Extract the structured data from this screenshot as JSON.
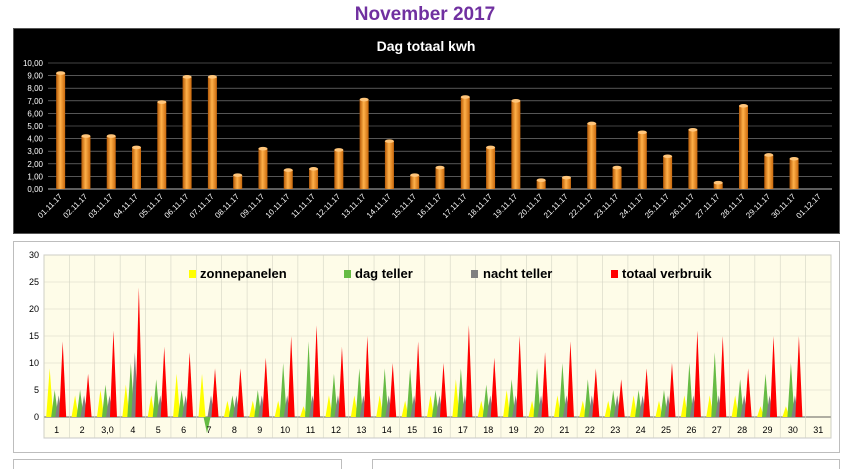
{
  "page": {
    "title": "November 2017"
  },
  "chart_data": [
    {
      "type": "bar",
      "title": "Dag totaal kwh",
      "xlabel": "",
      "ylabel": "",
      "ylim": [
        0,
        10
      ],
      "ytick_labels": [
        "0,00",
        "1,00",
        "2,00",
        "3,00",
        "4,00",
        "5,00",
        "6,00",
        "7,00",
        "8,00",
        "9,00",
        "10,00"
      ],
      "categories": [
        "01.11.17",
        "02.11.17",
        "03.11.17",
        "04.11.17",
        "05.11.17",
        "06.11.17",
        "07.11.17",
        "08.11.17",
        "09.11.17",
        "10.11.17",
        "11.11.17",
        "12.11.17",
        "13.11.17",
        "14.11.17",
        "15.11.17",
        "16.11.17",
        "17.11.17",
        "18.11.17",
        "19.11.17",
        "20.11.17",
        "21.11.17",
        "22.11.17",
        "23.11.17",
        "24.11.17",
        "25.11.17",
        "26.11.17",
        "27.11.17",
        "28.11.17",
        "29.11.17",
        "30.11.17",
        "01.12.17"
      ],
      "values": [
        9.2,
        4.2,
        4.2,
        3.3,
        6.9,
        8.9,
        8.9,
        1.1,
        3.2,
        1.5,
        1.6,
        3.1,
        7.1,
        3.8,
        1.1,
        1.7,
        7.3,
        3.3,
        7.0,
        0.7,
        0.9,
        5.2,
        1.7,
        4.5,
        2.6,
        4.7,
        0.5,
        6.6,
        2.7,
        2.4,
        null
      ],
      "bar_color": "#f7941d",
      "background": "#000000",
      "grid": true
    },
    {
      "type": "area",
      "title": "",
      "ylim": [
        0,
        30
      ],
      "ymin_display": -5,
      "yticks": [
        "0",
        "5",
        "10",
        "15",
        "20",
        "25",
        "30"
      ],
      "day_labels": [
        "1",
        "2",
        "3,0",
        "4",
        "5",
        "6",
        "7",
        "8",
        "9",
        "10",
        "11",
        "12",
        "13",
        "14",
        "15",
        "16",
        "17",
        "18",
        "19",
        "20",
        "21",
        "22",
        "23",
        "24",
        "25",
        "26",
        "27",
        "28",
        "29",
        "30",
        "31"
      ],
      "legend": [
        "zonnepanelen",
        "dag teller",
        "nacht teller",
        "totaal verbruik"
      ],
      "legend_placement": "top",
      "colors": [
        "#ffff00",
        "#66bb44",
        "#808080",
        "#ff0000"
      ],
      "background": "#fefce8",
      "grid": true,
      "series": [
        {
          "name": "zonnepanelen",
          "values": [
            9,
            4,
            5,
            6,
            4,
            8,
            8,
            3,
            3,
            3,
            2,
            4,
            4,
            4,
            3,
            4,
            7,
            3,
            5,
            3,
            4,
            3,
            3,
            4,
            3,
            4,
            4,
            4,
            2,
            2,
            0
          ]
        },
        {
          "name": "dag teller",
          "values": [
            5,
            5,
            6,
            10,
            7,
            5,
            -3,
            4,
            5,
            10,
            14,
            8,
            9,
            9,
            9,
            5,
            9,
            6,
            7,
            9,
            10,
            7,
            5,
            5,
            5,
            10,
            12,
            7,
            8,
            10,
            0
          ]
        },
        {
          "name": "nacht teller",
          "values": [
            4,
            4,
            4,
            12,
            4,
            4,
            4,
            4,
            4,
            4,
            4,
            4,
            4,
            4,
            4,
            4,
            4,
            4,
            4,
            4,
            4,
            4,
            4,
            4,
            4,
            4,
            4,
            4,
            4,
            4,
            0
          ]
        },
        {
          "name": "totaal verbruik",
          "values": [
            14,
            8,
            16,
            24,
            13,
            12,
            9,
            9,
            11,
            15,
            17,
            13,
            15,
            10,
            14,
            10,
            17,
            11,
            15,
            12,
            14,
            9,
            7,
            9,
            10,
            16,
            15,
            9,
            15,
            15,
            0
          ]
        }
      ]
    }
  ]
}
